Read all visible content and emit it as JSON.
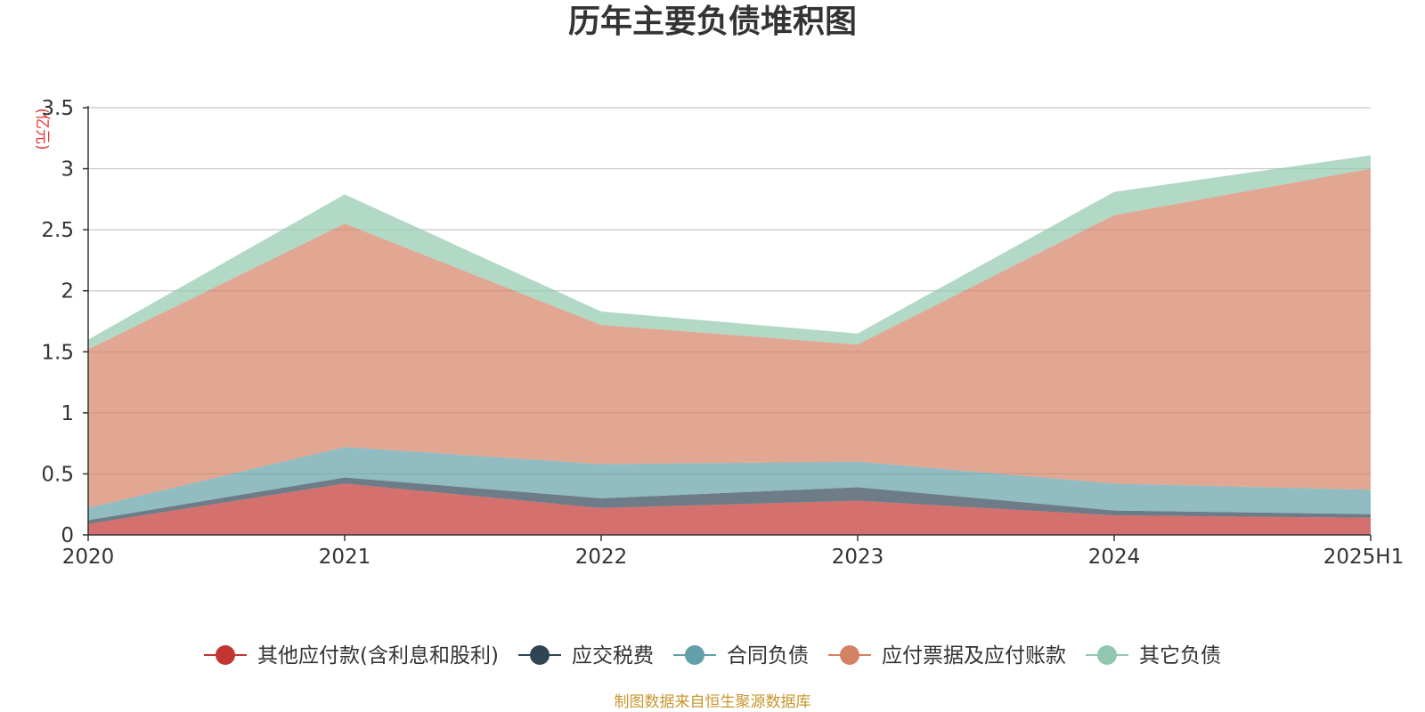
{
  "title": "历年主要负债堆积图",
  "footer": "制图数据来自恒生聚源数据库",
  "chart_data": {
    "type": "area",
    "stacked": true,
    "title": "历年主要负债堆积图",
    "unit_label": "(亿元)",
    "categories": [
      "2020",
      "2021",
      "2022",
      "2023",
      "2024",
      "2025H1"
    ],
    "ylim": [
      0,
      3.5
    ],
    "yticks": [
      0,
      0.5,
      1,
      1.5,
      2,
      2.5,
      3,
      3.5
    ],
    "ytick_labels": [
      "0",
      "0.5",
      "1",
      "1.5",
      "2",
      "2.5",
      "3",
      "3.5"
    ],
    "grid": true,
    "legend_position": "bottom",
    "series": [
      {
        "name": "其他应付款(含利息和股利)",
        "color": "#c23531",
        "values": [
          0.09,
          0.42,
          0.22,
          0.28,
          0.16,
          0.14
        ]
      },
      {
        "name": "应交税费",
        "color": "#2f4554",
        "values": [
          0.03,
          0.05,
          0.08,
          0.11,
          0.04,
          0.03
        ]
      },
      {
        "name": "合同负债",
        "color": "#61a0a8",
        "values": [
          0.1,
          0.25,
          0.28,
          0.21,
          0.22,
          0.2
        ]
      },
      {
        "name": "应付票据及应付账款",
        "color": "#d48265",
        "values": [
          1.3,
          1.83,
          1.14,
          0.96,
          2.2,
          2.63
        ]
      },
      {
        "name": "其它负债",
        "color": "#91c7ae",
        "values": [
          0.08,
          0.24,
          0.11,
          0.09,
          0.19,
          0.11
        ]
      }
    ]
  }
}
